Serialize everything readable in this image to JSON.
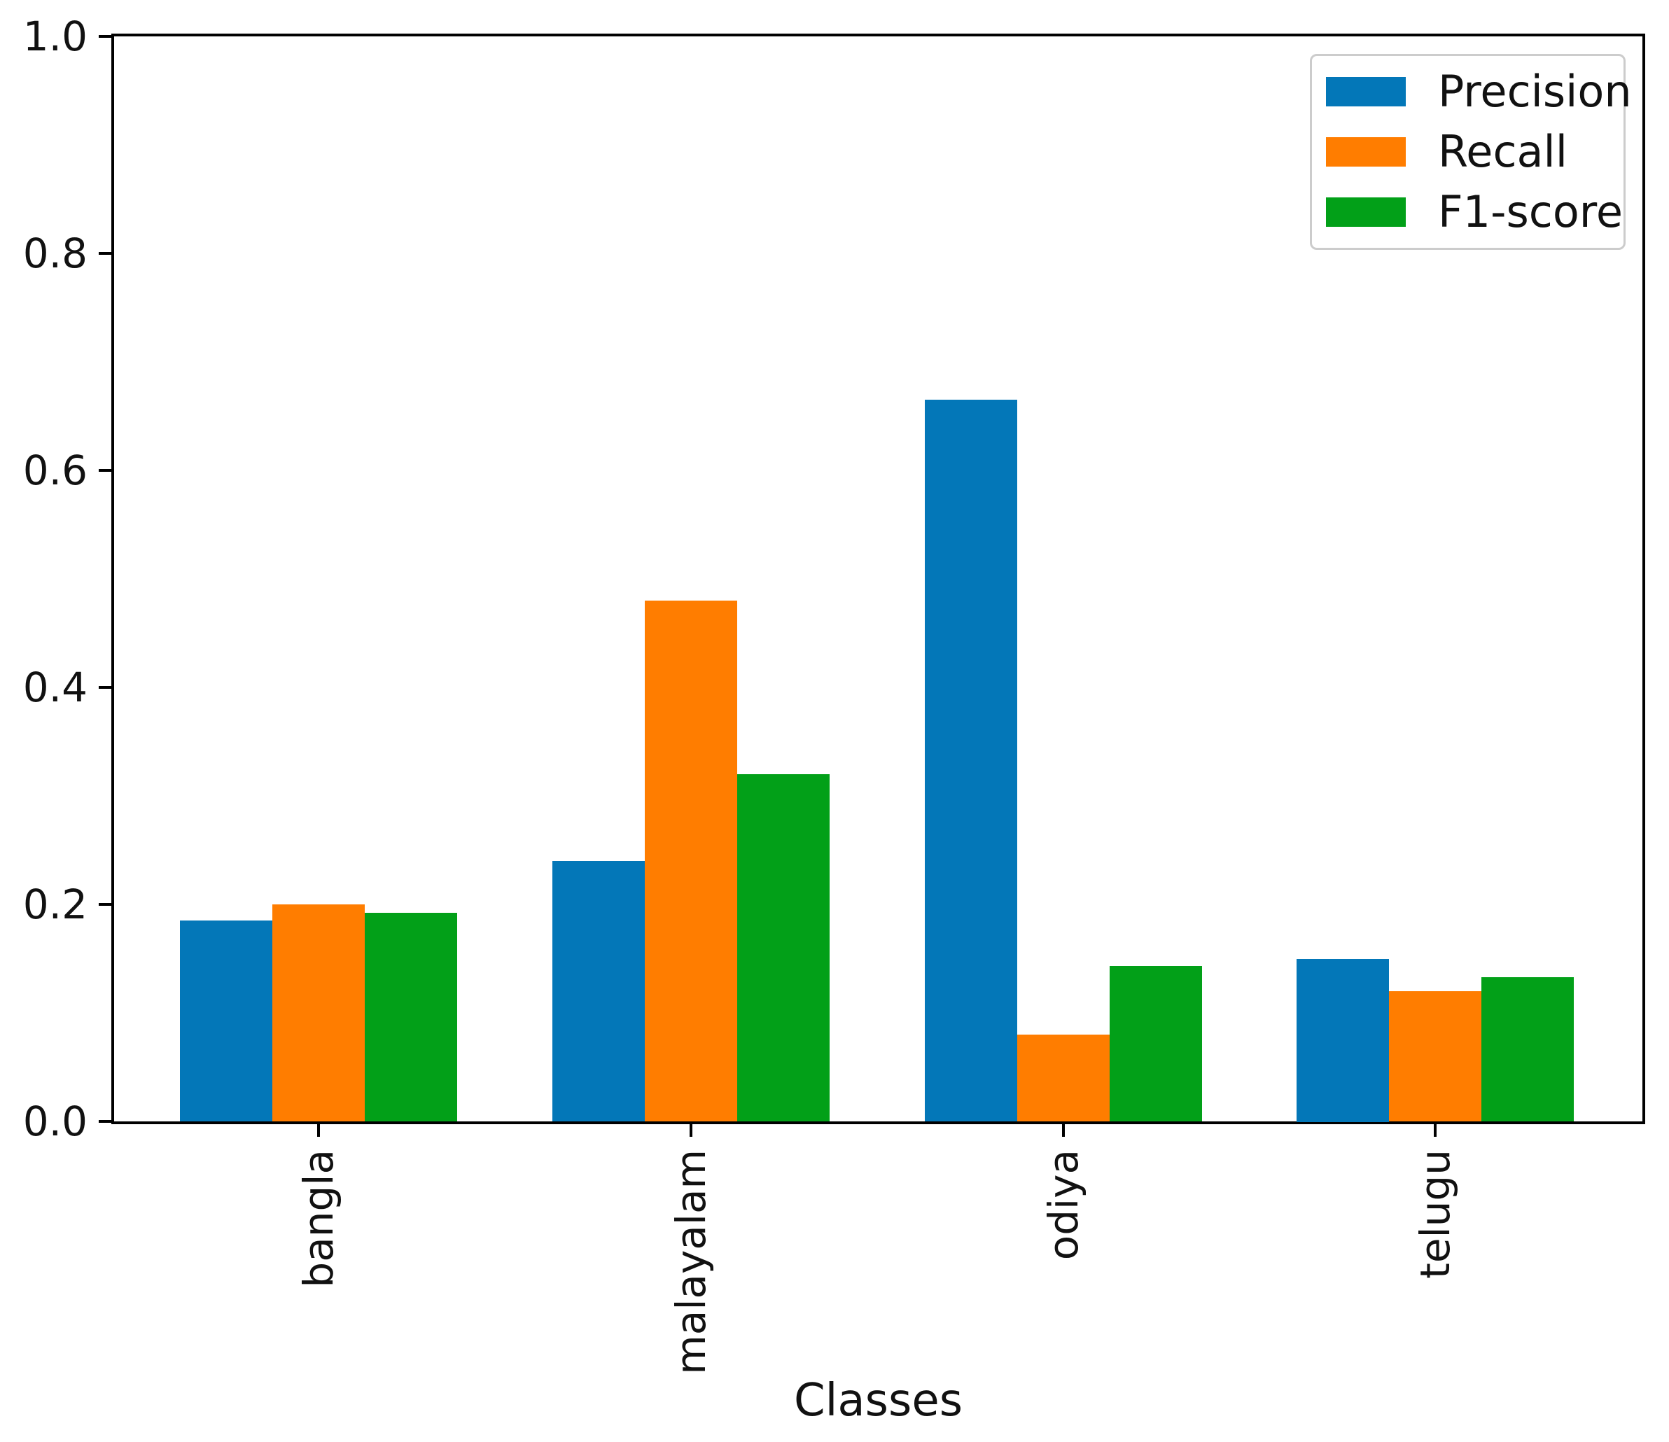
{
  "chart_data": {
    "type": "bar",
    "title": "",
    "xlabel": "Classes",
    "ylabel": "",
    "categories": [
      "bangla",
      "malayalam",
      "odiya",
      "telugu"
    ],
    "series": [
      {
        "name": "Precision",
        "color": "#0377b8",
        "values": [
          0.185,
          0.24,
          0.665,
          0.15
        ]
      },
      {
        "name": "Recall",
        "color": "#ff7d00",
        "values": [
          0.2,
          0.48,
          0.08,
          0.12
        ]
      },
      {
        "name": "F1-score",
        "color": "#02a018",
        "values": [
          0.192,
          0.32,
          0.143,
          0.133
        ]
      }
    ],
    "ylim": [
      0.0,
      1.0
    ],
    "yticks": [
      "0.0",
      "0.2",
      "0.4",
      "0.6",
      "0.8",
      "1.0"
    ],
    "grid": false,
    "legend_position": "upper right",
    "bar_group_width": 0.75,
    "axis_color": "#000000",
    "plot_background": "#ffffff"
  }
}
